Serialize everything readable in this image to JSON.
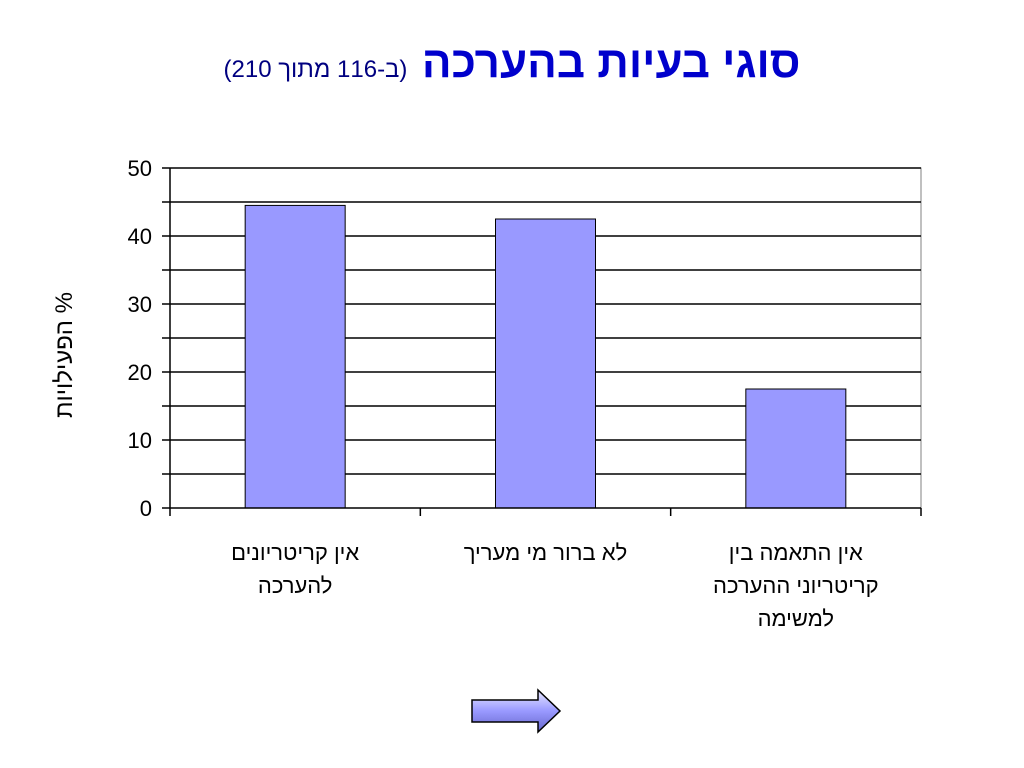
{
  "slide": {
    "title": "סוגי בעיות בהערכה",
    "subtitle": "(ב-116 מתוך 210)"
  },
  "chart_data": {
    "type": "bar",
    "categories": [
      [
        "אין קריטריונים",
        "להערכה"
      ],
      [
        "לא ברור מי  מעריך"
      ],
      [
        "אין התאמה בין",
        "קריטריוני ההערכה",
        "למשימה"
      ]
    ],
    "values": [
      44.5,
      42.5,
      17.5
    ],
    "ylabel": "% הפעילויות",
    "ylim": [
      0,
      50
    ],
    "yticks": [
      0,
      10,
      20,
      30,
      40,
      50
    ],
    "ytick_labels": [
      "0",
      "10",
      "20",
      "30",
      "40",
      "50"
    ],
    "minor_step": 5,
    "grid": true,
    "bar_color": "#9999ff"
  },
  "navigation": {
    "next_icon": "right-arrow-icon"
  }
}
